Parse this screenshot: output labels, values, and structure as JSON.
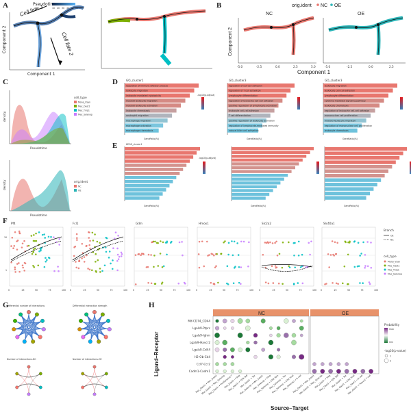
{
  "panel_labels": [
    "A",
    "B",
    "C",
    "D",
    "E",
    "F",
    "G",
    "H"
  ],
  "panelA": {
    "legend_title": "Pseudotime",
    "legend_ticks": [
      "10",
      "20",
      "30",
      "40",
      "50",
      "60"
    ],
    "cell_fate_1": "Cell fate 1",
    "cell_fate_2": "Cell fate 2",
    "xlabel": "Component 1",
    "ylabel": "Component 2"
  },
  "panelB": {
    "legend_title": "orig.ident",
    "legend_items": [
      "NC",
      "OE"
    ],
    "facets": [
      "NC",
      "OE"
    ],
    "xticks": [
      "-5.0",
      "-2.5",
      "0.0",
      "2.5",
      "5.0",
      "-5.0",
      "-2.5",
      "0.0",
      "2.5"
    ],
    "xlabel": "Component 1",
    "ylabel": "Component 2",
    "colors": {
      "NC": "#E8776F",
      "OE": "#2BB5B8"
    }
  },
  "panelC": {
    "legend1_title": "cell_type",
    "legend1_items": [
      "Mono_Vsan",
      "Mac_Oast1",
      "Mac_Tnip1",
      "Mac_Selenop"
    ],
    "legend2_title": "orig.ident",
    "legend2_items": [
      "NC",
      "OE"
    ],
    "xlabel": "Pseudotime",
    "ylabel": "density"
  },
  "panelD": {
    "title1": "GO_cluster1",
    "terms1": [
      "regulation of immune effector process",
      "leukocyte migration",
      "leukocyte mediated cytotoxicity",
      "myeloid leukocyte migration",
      "myeloid leukocyte activation",
      "leukocyte chemotaxis",
      "neutrophil migration",
      "macrophage migration",
      "macrophage activation",
      "macrophage chemotaxis"
    ],
    "title2": "GO_cluster3",
    "terms2": [
      "regulation of cell-cell adhesion",
      "regulation of T cell activation",
      "lymphocyte differentiation",
      "regulation of leukocyte cell-cell adhesion",
      "positive regulation of lymphocyte activation",
      "leukocyte cell-cell adhesion",
      "T cell differentiation",
      "positive regulation of leukocyte activation",
      "regulation of lymphocyte-mediated immunity",
      "natural killer cell activation"
    ],
    "title3": "GO_cluster3",
    "terms3": [
      "leukocyte migration",
      "leukocyte cell-cell adhesion",
      "lymphocyte differentiation",
      "cytokine-mediated signaling pathway",
      "leukocyte chemotaxis",
      "regulation of leukocyte cell-cell adhesion",
      "mononuclear cell proliferation",
      "myeloid leukocyte migration",
      "regulation of mononuclear cell proliferation",
      "leukocyte chemotaxis"
    ],
    "xlabel": "GeneRatio(%)",
    "legend_title": "-log10(p.adjust)"
  },
  "panelE": {
    "title1": "KEGG_cluster1",
    "xlabel": "GeneRatio(%)",
    "legend_title": "-log10(p.adjust)"
  },
  "panelF": {
    "genes": [
      "Pf4",
      "Fcl1",
      "Gdm",
      "Hmox1",
      "Slc2a2",
      "Slc40a1"
    ],
    "xticks": [
      "0",
      "25",
      "50",
      "75",
      "100"
    ],
    "yticks": [
      "1",
      "10"
    ],
    "branch_title": "Branch",
    "branch_items": [
      "OE",
      "NC"
    ],
    "cell_type_title": "cell_type",
    "cell_type_items": [
      "Mono_Vsan",
      "Mac_Oast1",
      "Mac_Tnip1",
      "Mac_Selenop"
    ],
    "colors": {
      "Mono_Vsan": "#E8776F",
      "Mac_Oast1": "#7CAE00",
      "Mac_Tnip1": "#00BFC4",
      "Mac_Selenop": "#C77CFF"
    }
  },
  "panelG": {
    "titles": [
      "Differential number of interactions",
      "Differential interaction strength",
      "Number of interactions-NC",
      "Number of interactions-OE"
    ]
  },
  "panelH": {
    "facets": [
      "NC",
      "OE"
    ],
    "rows": [
      "Mif-CD74_CD44",
      "Lgals9-Ptprc",
      "Lgals9-Ighm",
      "Lgals9-Havcr2",
      "Lgals9-Cd44",
      "H2-Ob-Cd4",
      "Ccl7-Ccr2",
      "Cadm1-Cadm1"
    ],
    "xlabel": "Source–Target",
    "ylabel": "Ligand–Receptor",
    "legend_prob": "Probability",
    "legend_prob_ticks": [
      "max",
      "min"
    ],
    "legend_p": "-log10(p-value)",
    "legend_p_ticks": [
      "1",
      "2"
    ],
    "cols_nc": [
      "Mac_Oast1 → Mac_Oast1",
      "Mac_Oast1 → Mac_Selenop",
      "Mac_Oast1 → Proliferative T",
      "Mac_Oast1 → Treg",
      "Mac_Oast1 → CD8 Teff",
      "Mac_Oast1 → Tex",
      "Mac_Selenop → Mac_Oast1",
      "Mac_Selenop → Treg",
      "Mac_Selenop → CD8 Tem",
      "Mac_Selenop → Tex",
      "Mac_Selenop → CD4 Tcell",
      "Mac_Selenop → B cell"
    ],
    "cols_oe": [
      "Mac_Oast1 → Mac_Oast1",
      "Mac_Oast1 → Mac_Selenop",
      "Mac_Oast1 → Treg",
      "Mac_Oast1 → CD8 Teff",
      "Mac_Oast1 → Tex",
      "Mac_Oast1 → CD4 Tcell",
      "Mac_Oast1 → B cell",
      "Mac_Oast1 → Havcr2 T cell"
    ]
  }
}
